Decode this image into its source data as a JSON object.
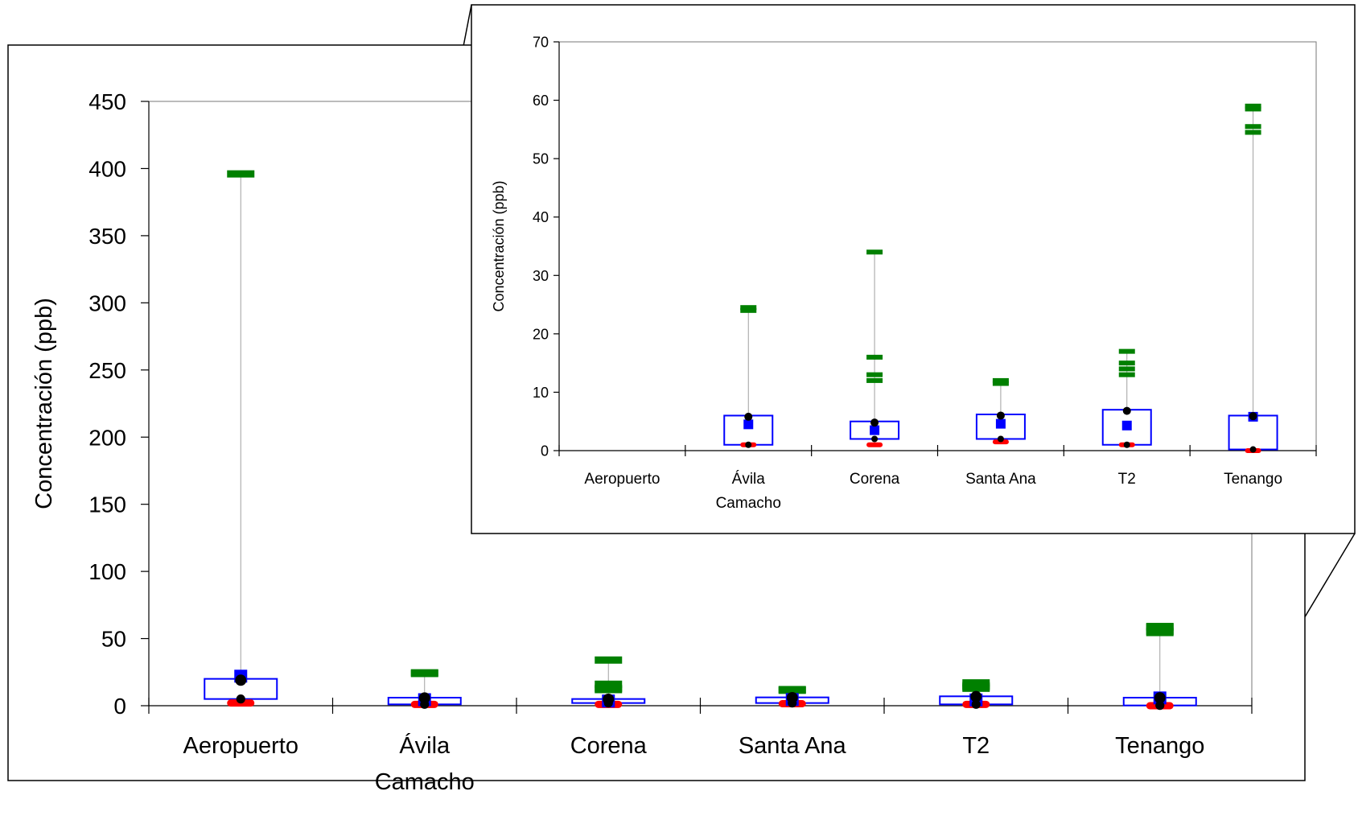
{
  "chart_data": [
    {
      "type": "box",
      "ylabel": "Concentración (ppb)",
      "ylim": [
        0,
        450
      ],
      "yticks": [
        0,
        50,
        100,
        150,
        200,
        250,
        300,
        350,
        400,
        450
      ],
      "categories": [
        "Aeropuerto",
        "Ávila Camacho",
        "Corena",
        "Santa Ana",
        "T2",
        "Tenango"
      ],
      "category_lines": [
        [
          "Aeropuerto"
        ],
        [
          "Ávila",
          "Camacho"
        ],
        [
          "Corena"
        ],
        [
          "Santa Ana"
        ],
        [
          "T2"
        ],
        [
          "Tenango"
        ]
      ],
      "boxes": [
        {
          "q1": 5,
          "q3": 20,
          "mean": 22,
          "median": 19,
          "p_low": 5,
          "min": 2,
          "max": 396,
          "outliers": []
        },
        {
          "q1": 1,
          "q3": 6,
          "mean": 4.5,
          "median": 5.8,
          "p_low": 1,
          "min": 1,
          "max": 24.5,
          "outliers": [
            24
          ]
        },
        {
          "q1": 2,
          "q3": 5,
          "mean": 3.5,
          "median": 4.8,
          "p_low": 2,
          "min": 1,
          "max": 34,
          "outliers": [
            16,
            13,
            12
          ]
        },
        {
          "q1": 2,
          "q3": 6.2,
          "mean": 4.6,
          "median": 6,
          "p_low": 2,
          "min": 1.5,
          "max": 12,
          "outliers": [
            11.5
          ]
        },
        {
          "q1": 1,
          "q3": 7,
          "mean": 4.3,
          "median": 6.8,
          "p_low": 1,
          "min": 1,
          "max": 17,
          "outliers": [
            15,
            14,
            13
          ]
        },
        {
          "q1": 0.2,
          "q3": 6,
          "mean": 5.8,
          "median": 5.9,
          "p_low": 0.2,
          "min": 0,
          "max": 59,
          "outliers": [
            58.5,
            55.5,
            54.5
          ]
        }
      ],
      "colors": {
        "box": "#0000ff",
        "mean": "#0000ff",
        "median": "#000000",
        "min": "#ff0000",
        "max": "#008000",
        "whisker": "#a0a0a0"
      }
    },
    {
      "type": "box",
      "ylabel": "Concentración (ppb)",
      "ylim": [
        0,
        70
      ],
      "yticks": [
        0,
        10,
        20,
        30,
        40,
        50,
        60,
        70
      ],
      "categories": [
        "Aeropuerto",
        "Ávila Camacho",
        "Corena",
        "Santa Ana",
        "T2",
        "Tenango"
      ],
      "category_lines": [
        [
          "Aeropuerto"
        ],
        [
          "Ávila",
          "Camacho"
        ],
        [
          "Corena"
        ],
        [
          "Santa Ana"
        ],
        [
          "T2"
        ],
        [
          "Tenango"
        ]
      ],
      "boxes": [
        null,
        {
          "q1": 1,
          "q3": 6,
          "mean": 4.5,
          "median": 5.8,
          "p_low": 1,
          "min": 1,
          "max": 24.5,
          "outliers": [
            24
          ]
        },
        {
          "q1": 2,
          "q3": 5,
          "mean": 3.5,
          "median": 4.8,
          "p_low": 2,
          "min": 1,
          "max": 34,
          "outliers": [
            16,
            13,
            12
          ]
        },
        {
          "q1": 2,
          "q3": 6.2,
          "mean": 4.6,
          "median": 6,
          "p_low": 2,
          "min": 1.5,
          "max": 12,
          "outliers": [
            11.5
          ]
        },
        {
          "q1": 1,
          "q3": 7,
          "mean": 4.3,
          "median": 6.8,
          "p_low": 1,
          "min": 1,
          "max": 17,
          "outliers": [
            15,
            14,
            13
          ]
        },
        {
          "q1": 0.2,
          "q3": 6,
          "mean": 5.8,
          "median": 5.9,
          "p_low": 0.2,
          "min": 0,
          "max": 59,
          "outliers": [
            58.5,
            55.5,
            54.5
          ]
        }
      ],
      "colors": {
        "box": "#0000ff",
        "mean": "#0000ff",
        "median": "#000000",
        "min": "#ff0000",
        "max": "#008000",
        "whisker": "#a0a0a0"
      }
    }
  ]
}
